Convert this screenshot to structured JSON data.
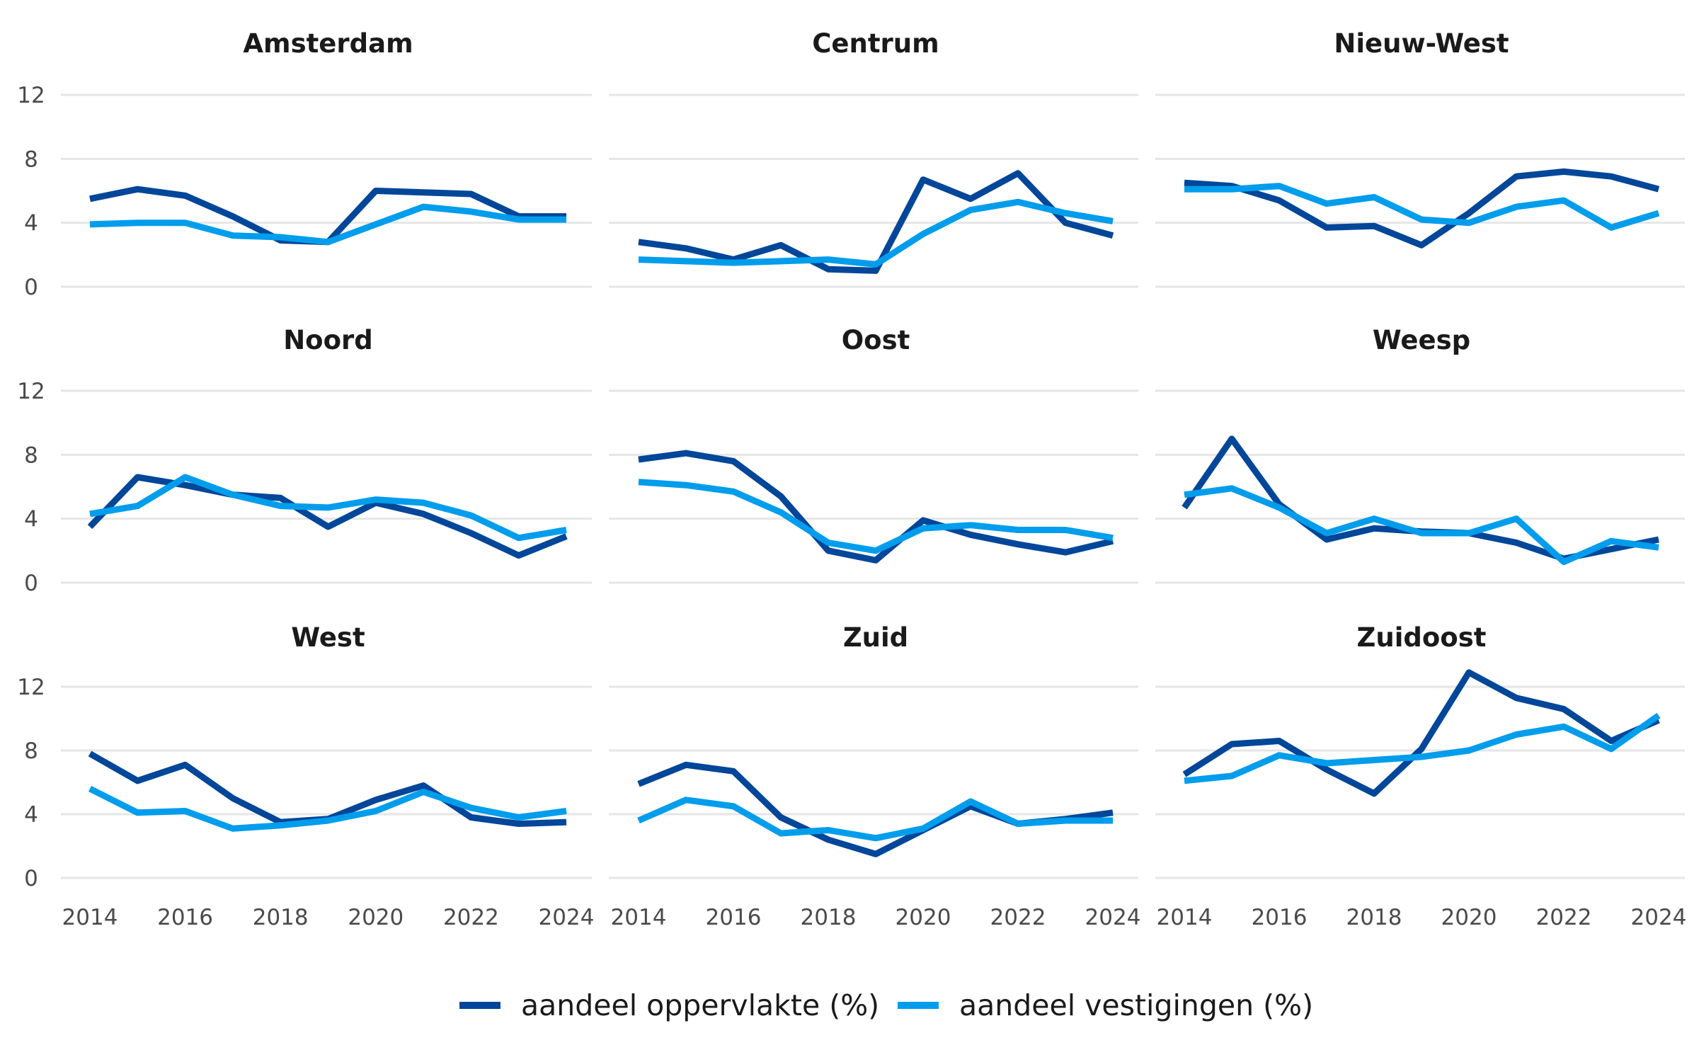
{
  "chart_data": {
    "type": "line",
    "layout": "small-multiples",
    "x": [
      2014,
      2015,
      2016,
      2017,
      2018,
      2019,
      2020,
      2021,
      2022,
      2023,
      2024
    ],
    "xticks": [
      2014,
      2016,
      2018,
      2020,
      2022,
      2024
    ],
    "yticks": [
      0,
      4,
      8,
      12
    ],
    "ylim": [
      0,
      13
    ],
    "xlim": [
      2014,
      2024
    ],
    "grid": true,
    "legend": "bottom-center",
    "series_meta": [
      {
        "name": "aandeel oppervlakte (%)",
        "color": "#004699"
      },
      {
        "name": "aandeel vestigingen (%)",
        "color": "#009DEC"
      }
    ],
    "panels": [
      {
        "title": "Amsterdam",
        "oppervlakte": [
          5.5,
          6.1,
          5.7,
          4.4,
          2.9,
          2.8,
          6.0,
          5.9,
          5.8,
          4.4,
          4.4
        ],
        "vestigingen": [
          3.9,
          4.0,
          4.0,
          3.2,
          3.1,
          2.8,
          3.9,
          5.0,
          4.7,
          4.2,
          4.2
        ]
      },
      {
        "title": "Centrum",
        "oppervlakte": [
          2.8,
          2.4,
          1.7,
          2.6,
          1.1,
          1.0,
          6.7,
          5.5,
          7.1,
          4.0,
          3.2
        ],
        "vestigingen": [
          1.7,
          1.6,
          1.5,
          1.6,
          1.7,
          1.4,
          3.3,
          4.8,
          5.3,
          4.6,
          4.1
        ]
      },
      {
        "title": "Nieuw-West",
        "oppervlakte": [
          6.5,
          6.3,
          5.4,
          3.7,
          3.8,
          2.6,
          4.6,
          6.9,
          7.2,
          6.9,
          6.1
        ],
        "vestigingen": [
          6.1,
          6.1,
          6.3,
          5.2,
          5.6,
          4.2,
          4.0,
          5.0,
          5.4,
          3.7,
          4.6
        ]
      },
      {
        "title": "Noord",
        "oppervlakte": [
          3.5,
          6.6,
          6.1,
          5.5,
          5.3,
          3.5,
          5.0,
          4.3,
          3.1,
          1.7,
          2.9
        ],
        "vestigingen": [
          4.3,
          4.8,
          6.6,
          5.5,
          4.8,
          4.7,
          5.2,
          5.0,
          4.2,
          2.8,
          3.3
        ]
      },
      {
        "title": "Oost",
        "oppervlakte": [
          7.7,
          8.1,
          7.6,
          5.4,
          2.0,
          1.4,
          3.9,
          3.0,
          2.4,
          1.9,
          2.6
        ],
        "vestigingen": [
          6.3,
          6.1,
          5.7,
          4.4,
          2.5,
          2.0,
          3.4,
          3.6,
          3.3,
          3.3,
          2.8
        ]
      },
      {
        "title": "Weesp",
        "oppervlakte": [
          4.7,
          9.0,
          4.9,
          2.7,
          3.4,
          3.2,
          3.1,
          2.5,
          1.5,
          2.1,
          2.7
        ],
        "vestigingen": [
          5.5,
          5.9,
          4.7,
          3.1,
          4.0,
          3.1,
          3.1,
          4.0,
          1.3,
          2.6,
          2.2
        ]
      },
      {
        "title": "West",
        "oppervlakte": [
          7.8,
          6.1,
          7.1,
          5.0,
          3.5,
          3.7,
          4.9,
          5.8,
          3.8,
          3.4,
          3.5
        ],
        "vestigingen": [
          5.6,
          4.1,
          4.2,
          3.1,
          3.3,
          3.6,
          4.2,
          5.4,
          4.4,
          3.8,
          4.2
        ]
      },
      {
        "title": "Zuid",
        "oppervlakte": [
          5.9,
          7.1,
          6.7,
          3.8,
          2.4,
          1.5,
          3.0,
          4.5,
          3.4,
          3.7,
          4.1
        ],
        "vestigingen": [
          3.6,
          4.9,
          4.5,
          2.8,
          3.0,
          2.5,
          3.1,
          4.8,
          3.4,
          3.6,
          3.6
        ]
      },
      {
        "title": "Zuidoost",
        "oppervlakte": [
          6.5,
          8.4,
          8.6,
          6.8,
          5.3,
          8.1,
          12.9,
          11.3,
          10.6,
          8.6,
          9.9
        ],
        "vestigingen": [
          6.1,
          6.4,
          7.7,
          7.2,
          7.4,
          7.6,
          8.0,
          9.0,
          9.5,
          8.1,
          10.2
        ]
      }
    ]
  }
}
